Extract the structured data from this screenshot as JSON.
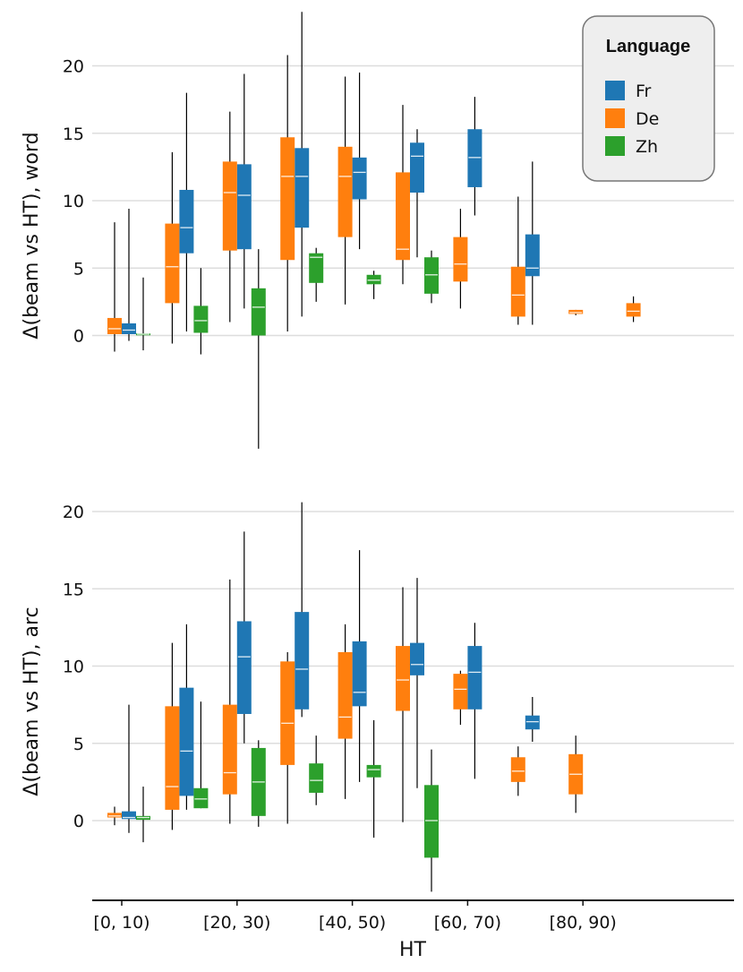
{
  "chart_data": [
    {
      "type": "box",
      "ylabel": "Δ(beam vs HT), word",
      "yticks": [
        0,
        5,
        10,
        15,
        20
      ],
      "ylim": [
        -8.7,
        24.0
      ],
      "series": [
        {
          "name": "Fr",
          "color": "#1f77b4",
          "boxes": [
            {
              "cat": 0,
              "whislo": -0.4,
              "q1": 0.1,
              "med": 0.4,
              "q3": 0.9,
              "whishi": 9.4
            },
            {
              "cat": 1,
              "whislo": 0.3,
              "q1": 6.1,
              "med": 8.0,
              "q3": 10.8,
              "whishi": 18.0
            },
            {
              "cat": 2,
              "whislo": 2.0,
              "q1": 6.4,
              "med": 10.4,
              "q3": 12.7,
              "whishi": 19.4
            },
            {
              "cat": 3,
              "whislo": 1.4,
              "q1": 8.0,
              "med": 11.8,
              "q3": 13.9,
              "whishi": 24.0
            },
            {
              "cat": 4,
              "whislo": 6.4,
              "q1": 10.1,
              "med": 12.1,
              "q3": 13.2,
              "whishi": 19.5
            },
            {
              "cat": 5,
              "whislo": 5.8,
              "q1": 10.6,
              "med": 13.3,
              "q3": 14.3,
              "whishi": 15.3
            },
            {
              "cat": 6,
              "whislo": 8.9,
              "q1": 11.0,
              "med": 13.2,
              "q3": 15.3,
              "whishi": 17.7
            },
            {
              "cat": 7,
              "whislo": 0.8,
              "q1": 4.4,
              "med": 5.0,
              "q3": 7.5,
              "whishi": 12.9
            }
          ]
        },
        {
          "name": "De",
          "color": "#ff7f0e",
          "boxes": [
            {
              "cat": 0,
              "whislo": -1.2,
              "q1": 0.1,
              "med": 0.5,
              "q3": 1.3,
              "whishi": 8.4
            },
            {
              "cat": 1,
              "whislo": -0.6,
              "q1": 2.4,
              "med": 5.1,
              "q3": 8.3,
              "whishi": 13.6
            },
            {
              "cat": 2,
              "whislo": 1.0,
              "q1": 6.3,
              "med": 10.6,
              "q3": 12.9,
              "whishi": 16.6
            },
            {
              "cat": 3,
              "whislo": 0.3,
              "q1": 5.6,
              "med": 11.8,
              "q3": 14.7,
              "whishi": 20.8
            },
            {
              "cat": 4,
              "whislo": 2.3,
              "q1": 7.3,
              "med": 11.8,
              "q3": 14.0,
              "whishi": 19.2
            },
            {
              "cat": 5,
              "whislo": 3.8,
              "q1": 5.6,
              "med": 6.4,
              "q3": 12.1,
              "whishi": 17.1
            },
            {
              "cat": 6,
              "whislo": 2.0,
              "q1": 4.0,
              "med": 5.3,
              "q3": 7.3,
              "whishi": 9.4
            },
            {
              "cat": 7,
              "whislo": 0.8,
              "q1": 1.4,
              "med": 3.0,
              "q3": 5.1,
              "whishi": 10.3
            },
            {
              "cat": 8,
              "whislo": 1.5,
              "q1": 1.6,
              "med": 1.7,
              "q3": 1.9,
              "whishi": 1.9
            },
            {
              "cat": 9,
              "whislo": 1.0,
              "q1": 1.4,
              "med": 1.8,
              "q3": 2.4,
              "whishi": 2.9
            }
          ]
        },
        {
          "name": "Zh",
          "color": "#2ca02c",
          "boxes": [
            {
              "cat": 0,
              "whislo": -1.1,
              "q1": 0.05,
              "med": 0.1,
              "q3": 0.15,
              "whishi": 4.3
            },
            {
              "cat": 1,
              "whislo": -1.4,
              "q1": 0.2,
              "med": 1.1,
              "q3": 2.2,
              "whishi": 5.0
            },
            {
              "cat": 2,
              "whislo": -8.4,
              "q1": 0.0,
              "med": 2.1,
              "q3": 3.5,
              "whishi": 6.4
            },
            {
              "cat": 3,
              "whislo": 2.5,
              "q1": 3.9,
              "med": 5.8,
              "q3": 6.1,
              "whishi": 6.5
            },
            {
              "cat": 4,
              "whislo": 2.7,
              "q1": 3.8,
              "med": 4.1,
              "q3": 4.5,
              "whishi": 4.8
            },
            {
              "cat": 5,
              "whislo": 2.4,
              "q1": 3.1,
              "med": 4.5,
              "q3": 5.8,
              "whishi": 6.3
            }
          ]
        }
      ]
    },
    {
      "type": "box",
      "ylabel": "Δ(beam vs HT), arc",
      "yticks": [
        0,
        5,
        10,
        15,
        20
      ],
      "ylim": [
        -4.6,
        20.6
      ],
      "series": [
        {
          "name": "Fr",
          "color": "#1f77b4",
          "boxes": [
            {
              "cat": 0,
              "whislo": -0.8,
              "q1": 0.1,
              "med": 0.2,
              "q3": 0.6,
              "whishi": 7.5
            },
            {
              "cat": 1,
              "whislo": 0.7,
              "q1": 1.6,
              "med": 4.5,
              "q3": 8.6,
              "whishi": 12.7
            },
            {
              "cat": 2,
              "whislo": 5.0,
              "q1": 6.9,
              "med": 10.6,
              "q3": 12.9,
              "whishi": 18.7
            },
            {
              "cat": 3,
              "whislo": 6.7,
              "q1": 7.2,
              "med": 9.8,
              "q3": 13.5,
              "whishi": 20.6
            },
            {
              "cat": 4,
              "whislo": 2.5,
              "q1": 7.4,
              "med": 8.3,
              "q3": 11.6,
              "whishi": 17.5
            },
            {
              "cat": 5,
              "whislo": 2.1,
              "q1": 9.4,
              "med": 10.1,
              "q3": 11.5,
              "whishi": 15.7
            },
            {
              "cat": 6,
              "whislo": 2.7,
              "q1": 7.2,
              "med": 9.6,
              "q3": 11.3,
              "whishi": 12.8
            },
            {
              "cat": 7,
              "whislo": 5.1,
              "q1": 5.9,
              "med": 6.4,
              "q3": 6.8,
              "whishi": 8.0
            }
          ]
        },
        {
          "name": "De",
          "color": "#ff7f0e",
          "boxes": [
            {
              "cat": 0,
              "whislo": -0.3,
              "q1": 0.2,
              "med": 0.3,
              "q3": 0.5,
              "whishi": 0.9
            },
            {
              "cat": 1,
              "whislo": -0.6,
              "q1": 0.7,
              "med": 2.2,
              "q3": 7.4,
              "whishi": 11.5
            },
            {
              "cat": 2,
              "whislo": -0.2,
              "q1": 1.7,
              "med": 3.1,
              "q3": 7.5,
              "whishi": 15.6
            },
            {
              "cat": 3,
              "whislo": -0.2,
              "q1": 3.6,
              "med": 6.3,
              "q3": 10.3,
              "whishi": 10.9
            },
            {
              "cat": 4,
              "whislo": 1.4,
              "q1": 5.3,
              "med": 6.7,
              "q3": 10.9,
              "whishi": 12.7
            },
            {
              "cat": 5,
              "whislo": -0.1,
              "q1": 7.1,
              "med": 9.1,
              "q3": 11.3,
              "whishi": 15.1
            },
            {
              "cat": 6,
              "whislo": 6.2,
              "q1": 7.2,
              "med": 8.5,
              "q3": 9.5,
              "whishi": 9.7
            },
            {
              "cat": 7,
              "whislo": 1.6,
              "q1": 2.5,
              "med": 3.2,
              "q3": 4.1,
              "whishi": 4.8
            },
            {
              "cat": 8,
              "whislo": 0.5,
              "q1": 1.7,
              "med": 3.0,
              "q3": 4.3,
              "whishi": 5.5
            }
          ]
        },
        {
          "name": "Zh",
          "color": "#2ca02c",
          "boxes": [
            {
              "cat": 0,
              "whislo": -1.4,
              "q1": 0.05,
              "med": 0.2,
              "q3": 0.3,
              "whishi": 2.2
            },
            {
              "cat": 1,
              "whislo": 0.8,
              "q1": 0.8,
              "med": 1.4,
              "q3": 2.1,
              "whishi": 7.7
            },
            {
              "cat": 2,
              "whislo": -0.4,
              "q1": 0.3,
              "med": 2.5,
              "q3": 4.7,
              "whishi": 5.2
            },
            {
              "cat": 3,
              "whislo": 1.0,
              "q1": 1.8,
              "med": 2.6,
              "q3": 3.7,
              "whishi": 5.5
            },
            {
              "cat": 4,
              "whislo": -1.1,
              "q1": 2.8,
              "med": 3.3,
              "q3": 3.6,
              "whishi": 6.5
            },
            {
              "cat": 5,
              "whislo": -4.6,
              "q1": -2.4,
              "med": 0.0,
              "q3": 2.3,
              "whishi": 4.6
            }
          ]
        }
      ]
    }
  ],
  "x_axis": {
    "title": "HT",
    "tick_labels": [
      "[0, 10)",
      "[20, 30)",
      "[40, 50)",
      "[60, 70)",
      "[80, 90)"
    ],
    "tick_categories": [
      0,
      2,
      4,
      6,
      8
    ]
  },
  "legend": {
    "title": "Language",
    "placement": "top-right",
    "entries": [
      {
        "label": "Fr",
        "color": "#1f77b4"
      },
      {
        "label": "De",
        "color": "#ff7f0e"
      },
      {
        "label": "Zh",
        "color": "#2ca02c"
      }
    ]
  }
}
